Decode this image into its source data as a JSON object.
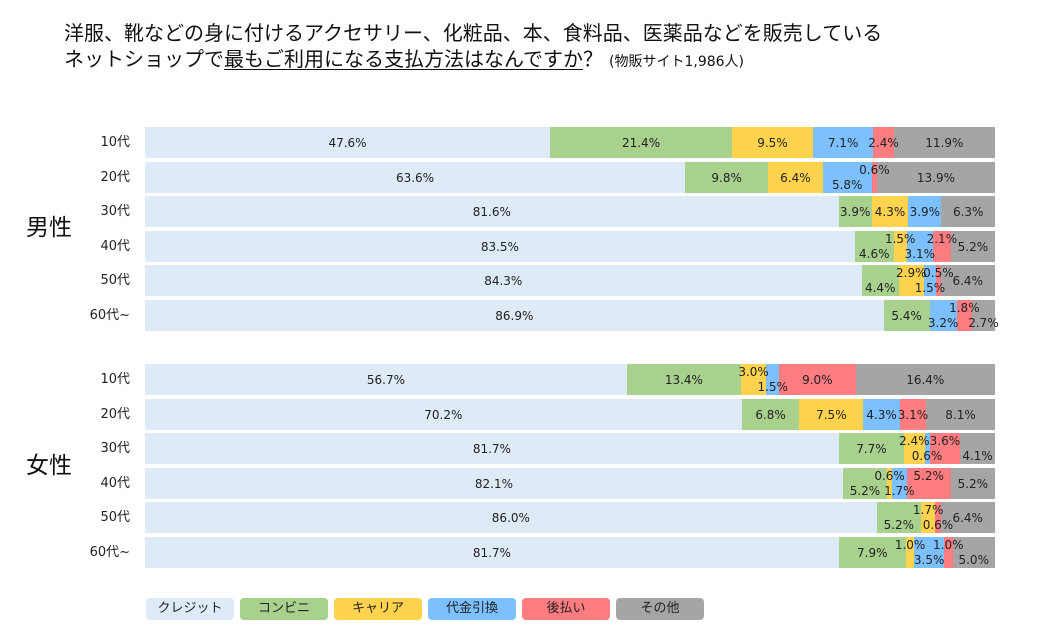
{
  "chart_data": {
    "type": "bar",
    "orientation": "horizontal",
    "stacked": true,
    "title": {
      "line1": "洋服、靴などの身に付けるアクセサリー、化粧品、本、食料品、医薬品などを販売している",
      "line2_lead": "ネットショップで",
      "line2_emphasis": "最もご利用になる支払方法はなんですか",
      "line2_mark": "？",
      "note": "(物販サイト1,986人)"
    },
    "xlim": [
      0,
      100
    ],
    "grid": false,
    "legend_position": "bottom-left",
    "series": [
      {
        "name": "クレジット",
        "color": "#DEEAF6"
      },
      {
        "name": "コンビニ",
        "color": "#A9D18E"
      },
      {
        "name": "キャリア",
        "color": "#FFD34D"
      },
      {
        "name": "代金引換",
        "color": "#7CC0FF"
      },
      {
        "name": "後払い",
        "color": "#FF7C80"
      },
      {
        "name": "その他",
        "color": "#A5A5A5"
      }
    ],
    "groups": [
      {
        "name": "男性",
        "rows": [
          {
            "label": "10代",
            "values": [
              47.6,
              21.4,
              9.5,
              7.1,
              2.4,
              11.9
            ],
            "labels": [
              "47.6%",
              "21.4%",
              "9.5%",
              "7.1%",
              "2.4%",
              "11.9%"
            ]
          },
          {
            "label": "20代",
            "values": [
              63.6,
              9.8,
              6.4,
              5.8,
              0.6,
              13.9
            ],
            "labels": [
              "63.6%",
              "9.8%",
              "6.4%",
              "5.8%",
              "0.6%",
              "13.9%"
            ]
          },
          {
            "label": "30代",
            "values": [
              81.6,
              3.9,
              4.3,
              3.9,
              0,
              6.3
            ],
            "labels": [
              "81.6%",
              "3.9%",
              "4.3%",
              "3.9%",
              null,
              "6.3%"
            ]
          },
          {
            "label": "40代",
            "values": [
              83.5,
              4.6,
              1.5,
              3.1,
              2.1,
              5.2
            ],
            "labels": [
              "83.5%",
              "4.6%",
              "1.5%",
              "3.1%",
              "2.1%",
              "5.2%"
            ]
          },
          {
            "label": "50代",
            "values": [
              84.3,
              4.4,
              2.9,
              1.5,
              0.5,
              6.4
            ],
            "labels": [
              "84.3%",
              "4.4%",
              "2.9%",
              "1.5%",
              "0.5%",
              "6.4%"
            ]
          },
          {
            "label": "60代~",
            "values": [
              86.9,
              5.4,
              0,
              3.2,
              1.8,
              2.7
            ],
            "labels": [
              "86.9%",
              "5.4%",
              null,
              "3.2%",
              "1.8%",
              "2.7%"
            ]
          }
        ]
      },
      {
        "name": "女性",
        "rows": [
          {
            "label": "10代",
            "values": [
              56.7,
              13.4,
              3.0,
              1.5,
              9.0,
              16.4
            ],
            "labels": [
              "56.7%",
              "13.4%",
              "3.0%",
              "1.5%",
              "9.0%",
              "16.4%"
            ]
          },
          {
            "label": "20代",
            "values": [
              70.2,
              6.8,
              7.5,
              4.3,
              3.1,
              8.1
            ],
            "labels": [
              "70.2%",
              "6.8%",
              "7.5%",
              "4.3%",
              "3.1%",
              "8.1%"
            ]
          },
          {
            "label": "30代",
            "values": [
              81.7,
              7.7,
              2.4,
              0.6,
              3.6,
              4.1
            ],
            "labels": [
              "81.7%",
              "7.7%",
              "2.4%",
              "0.6%",
              "3.6%",
              "4.1%"
            ]
          },
          {
            "label": "40代",
            "values": [
              82.1,
              5.2,
              0.6,
              1.7,
              5.2,
              5.2
            ],
            "labels": [
              "82.1%",
              "5.2%",
              "0.6%",
              "1.7%",
              "5.2%",
              "5.2%"
            ]
          },
          {
            "label": "50代",
            "values": [
              86.0,
              5.2,
              1.7,
              0,
              0.6,
              6.4
            ],
            "labels": [
              "86.0%",
              "5.2%",
              "1.7%",
              null,
              "0.6%",
              "6.4%"
            ]
          },
          {
            "label": "60代~",
            "values": [
              81.7,
              7.9,
              1.0,
              3.5,
              1.0,
              5.0
            ],
            "labels": [
              "81.7%",
              "7.9%",
              "1.0%",
              "3.5%",
              "1.0%",
              "5.0%"
            ]
          }
        ]
      }
    ]
  }
}
